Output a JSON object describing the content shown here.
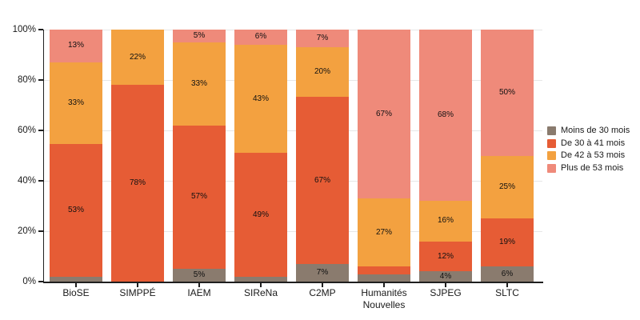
{
  "chart_data": {
    "type": "bar",
    "subtype": "stacked-100-percent-vertical",
    "title": "",
    "xlabel": "",
    "ylabel": "",
    "ylim": [
      0,
      100
    ],
    "grid": true,
    "legend_position": "right",
    "y_ticks": [
      {
        "value": 0,
        "label": "0%"
      },
      {
        "value": 20,
        "label": "20%"
      },
      {
        "value": 40,
        "label": "40%"
      },
      {
        "value": 60,
        "label": "60%"
      },
      {
        "value": 80,
        "label": "80%"
      },
      {
        "value": 100,
        "label": "100%"
      }
    ],
    "categories": [
      "BioSE",
      "SIMPPÉ",
      "IAEM",
      "SIReNa",
      "C2MP",
      "Humanités\nNouvelles",
      "SJPEG",
      "SLTC"
    ],
    "series": [
      {
        "name": "Moins de 30 mois",
        "color": "#8a7b6e",
        "values": [
          2,
          0,
          5,
          2,
          7,
          3,
          4,
          6
        ],
        "labels": [
          "",
          "",
          "5%",
          "",
          "7%",
          "",
          "4%",
          "6%"
        ]
      },
      {
        "name": "De 30 à 41 mois",
        "color": "#e65c35",
        "values": [
          53,
          78,
          57,
          49,
          67,
          3,
          12,
          19
        ],
        "labels": [
          "53%",
          "78%",
          "57%",
          "49%",
          "67%",
          "",
          "12%",
          "19%"
        ]
      },
      {
        "name": "De 42 à 53 mois",
        "color": "#f3a140",
        "values": [
          33,
          22,
          33,
          43,
          20,
          27,
          16,
          25
        ],
        "labels": [
          "33%",
          "22%",
          "33%",
          "43%",
          "20%",
          "27%",
          "16%",
          "25%"
        ]
      },
      {
        "name": "Plus de 53 mois",
        "color": "#ef8a7a",
        "values": [
          13,
          0,
          5,
          6,
          7,
          67,
          68,
          50
        ],
        "labels": [
          "13%",
          "",
          "5%",
          "6%",
          "7%",
          "67%",
          "68%",
          "50%"
        ]
      }
    ],
    "colors": {
      "axis": "#1f1f1f",
      "gridline": "#e7e7e7",
      "background": "#ffffff"
    }
  }
}
